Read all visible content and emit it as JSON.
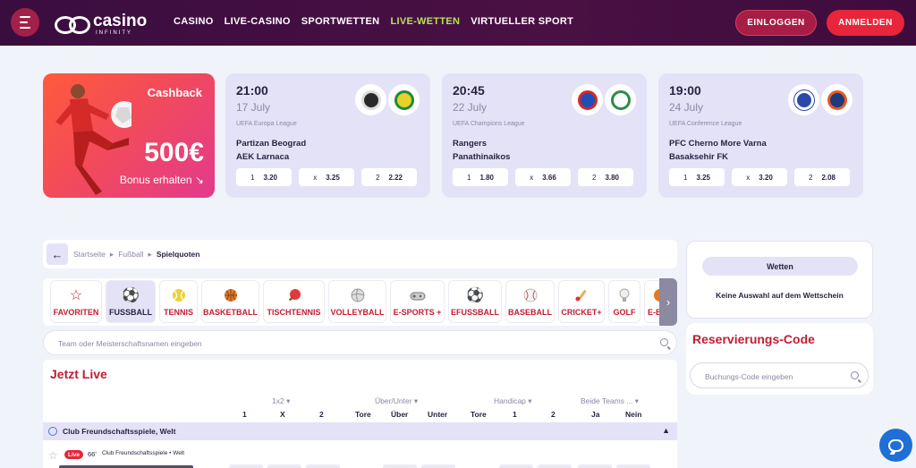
{
  "header": {
    "logo_text": "casino",
    "logo_sub": "INFINITY",
    "nav": [
      "CASINO",
      "LIVE-CASINO",
      "SPORTWETTEN",
      "LIVE-WETTEN",
      "VIRTUELLER SPORT"
    ],
    "active_nav": "LIVE-WETTEN",
    "login_label": "EINLOGGEN",
    "signup_label": "ANMELDEN",
    "colors": {
      "header_bg": "#3a0d3f",
      "accent_green": "#b6e35a",
      "brand_red": "#e8253a"
    }
  },
  "promo": {
    "title": "Cashback",
    "amount": "500€",
    "cta": "Bonus erhalten ↘"
  },
  "featured_matches": [
    {
      "time": "21:00",
      "date": "17 July",
      "league": "UEFA Europa League",
      "home": "Partizan Beograd",
      "away": "AEK Larnaca",
      "odds": [
        {
          "label": "1",
          "value": "3.20"
        },
        {
          "label": "x",
          "value": "3.25"
        },
        {
          "label": "2",
          "value": "2.22"
        }
      ],
      "crest_colors": [
        "#2a2a2a",
        "#e7d12b"
      ]
    },
    {
      "time": "20:45",
      "date": "22 July",
      "league": "UEFA Champions League",
      "home": "Rangers",
      "away": "Panathinaikos",
      "odds": [
        {
          "label": "1",
          "value": "1.80"
        },
        {
          "label": "x",
          "value": "3.66"
        },
        {
          "label": "2",
          "value": "3.80"
        }
      ],
      "crest_colors": [
        "#1f4fb4",
        "#2e8b4a"
      ]
    },
    {
      "time": "19:00",
      "date": "24 July",
      "league": "UEFA Conference League",
      "home": "PFC Cherno More Varna",
      "away": "Basaksehir FK",
      "odds": [
        {
          "label": "1",
          "value": "3.25"
        },
        {
          "label": "x",
          "value": "3.20"
        },
        {
          "label": "2",
          "value": "2.08"
        }
      ],
      "crest_colors": [
        "#2a4aa8",
        "#1e3a7a"
      ]
    }
  ],
  "breadcrumb": [
    "Startseite",
    "Fußball",
    "Spielquoten"
  ],
  "sports": [
    {
      "label": "FAVORITEN",
      "icon": "star-icon"
    },
    {
      "label": "FUSSBALL",
      "icon": "soccer-icon",
      "active": true
    },
    {
      "label": "TENNIS",
      "icon": "tennis-icon"
    },
    {
      "label": "BASKETBALL",
      "icon": "basketball-icon"
    },
    {
      "label": "TISCHTENNIS",
      "icon": "table-tennis-icon"
    },
    {
      "label": "VOLLEYBALL",
      "icon": "volleyball-icon"
    },
    {
      "label": "E-SPORTS +",
      "icon": "gamepad-icon"
    },
    {
      "label": "EFUSSBALL",
      "icon": "soccer-icon"
    },
    {
      "label": "BASEBALL",
      "icon": "baseball-icon"
    },
    {
      "label": "CRICKET+",
      "icon": "cricket-icon"
    },
    {
      "label": "GOLF",
      "icon": "golf-icon"
    },
    {
      "label": "E-BAS",
      "icon": "basketball-icon"
    }
  ],
  "search": {
    "placeholder": "Team oder Meisterschaftsnamen eingeben"
  },
  "live": {
    "title": "Jetzt Live",
    "groups": [
      "1x2 ▾",
      "Über/Unter ▾",
      "Handicap ▾",
      "Beide Teams ... ▾"
    ],
    "subheaders": [
      "1",
      "X",
      "2",
      "Tore",
      "Über",
      "Unter",
      "Tore",
      "1",
      "2",
      "Ja",
      "Nein"
    ],
    "league": "Club Freundschaftsspiele, Welt",
    "event": {
      "badge": "Live",
      "minute": "66'",
      "league": "Club Freundschaftsspiele • Welt"
    }
  },
  "betslip": {
    "tab": "Wetten",
    "empty": "Keine Auswahl auf dem Wettschein"
  },
  "reservation": {
    "title": "Reservierungs-Code",
    "placeholder": "Buchungs-Code eingeben"
  }
}
